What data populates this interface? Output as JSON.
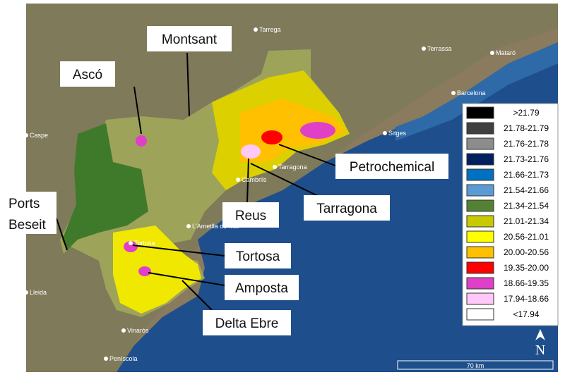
{
  "annotations": [
    "Montsant",
    "Ascó",
    "Petrochemical",
    "Tarragona",
    "Reus",
    "Tortosa",
    "Amposta",
    "Delta Ebre"
  ],
  "ports_beseit": [
    "Ports",
    "Beseit"
  ],
  "cities": [
    "Tarrega",
    "Terrassa",
    "Mataró",
    "Barcelona",
    "Sitges",
    "Tarragona",
    "Cambrils",
    "L'Ametlla de Mar",
    "Tortosa",
    "Caspe",
    "Vinaròs",
    "Peníscola",
    "Lleida"
  ],
  "legend": [
    {
      "label": ">21.79",
      "color": "#000000"
    },
    {
      "label": "21.78-21.79",
      "color": "#404040"
    },
    {
      "label": "21.76-21.78",
      "color": "#8c8c8c"
    },
    {
      "label": "21.73-21.76",
      "color": "#002060"
    },
    {
      "label": "21.66-21.73",
      "color": "#0070c0"
    },
    {
      "label": "21.54-21.66",
      "color": "#5b9bd5"
    },
    {
      "label": "21.34-21.54",
      "color": "#548235"
    },
    {
      "label": "21.01-21.34",
      "color": "#c9c900"
    },
    {
      "label": "20.56-21.01",
      "color": "#ffff00"
    },
    {
      "label": "20.00-20.56",
      "color": "#ffc000"
    },
    {
      "label": "19.35-20.00",
      "color": "#ff0000"
    },
    {
      "label": "18.66-19.35",
      "color": "#e040c8"
    },
    {
      "label": "17.94-18.66",
      "color": "#ffc8f8"
    },
    {
      "label": "<17.94",
      "color": "#ffffff"
    }
  ],
  "north": "N",
  "scale": "70 km"
}
